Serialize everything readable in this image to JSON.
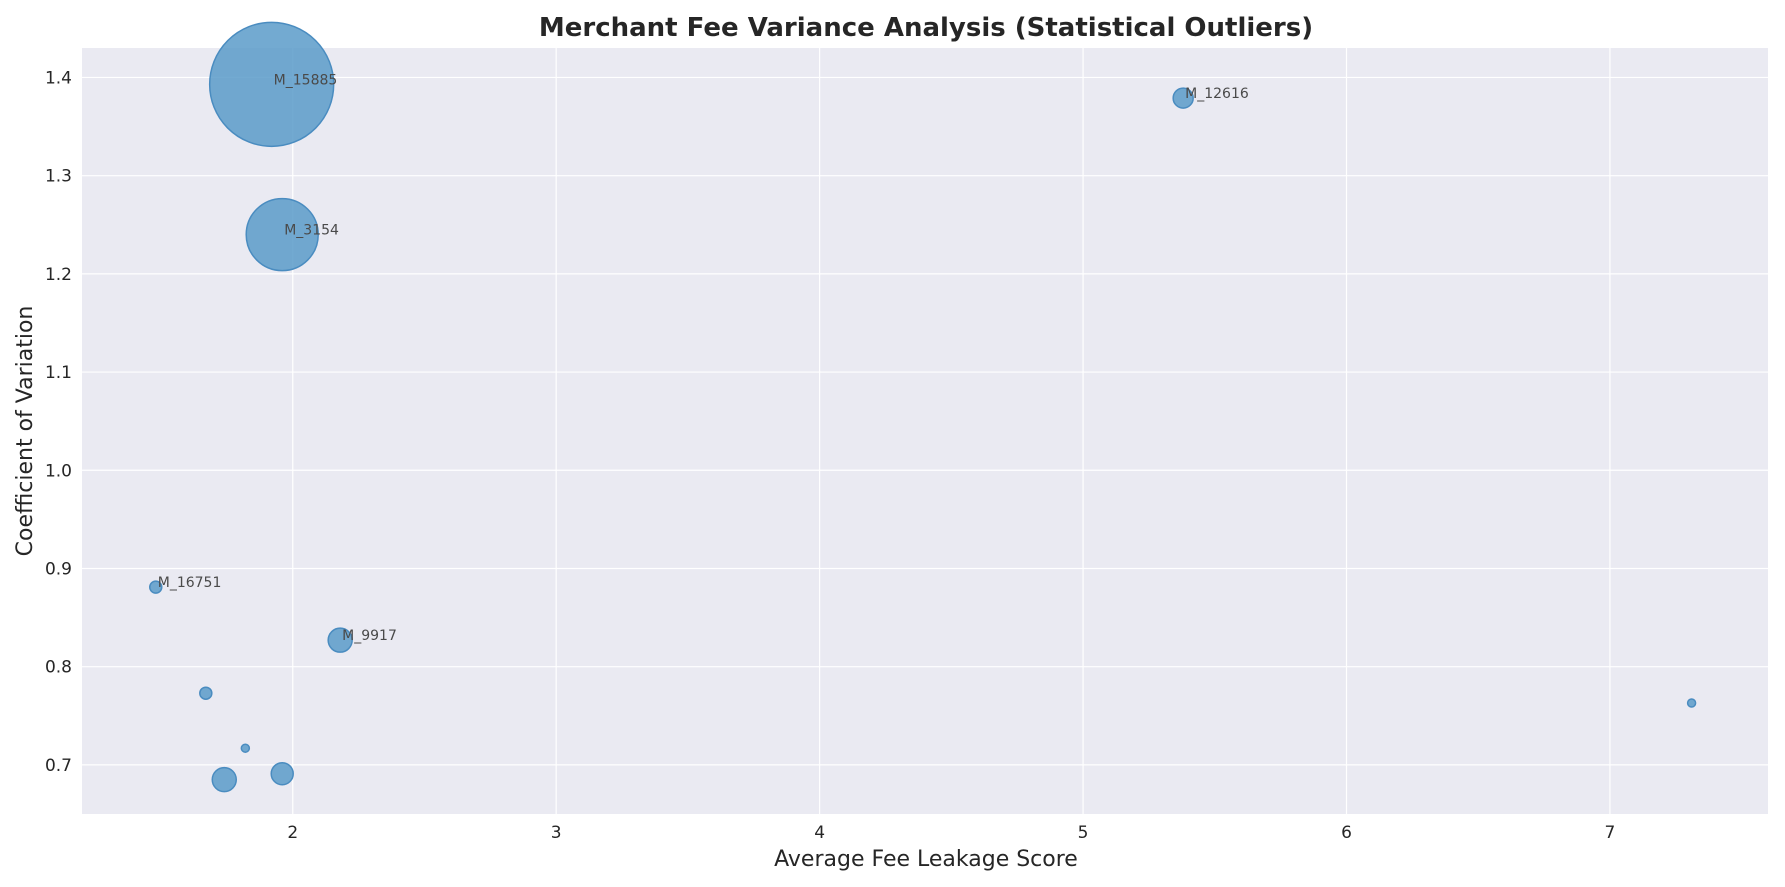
{
  "chart_data": {
    "type": "scatter",
    "title": "Merchant Fee Variance Analysis (Statistical Outliers)",
    "xlabel": "Average Fee Leakage Score",
    "ylabel": "Coefficient of Variation",
    "xlim": [
      1.2,
      7.6
    ],
    "ylim": [
      0.65,
      1.43
    ],
    "xticks": [
      2,
      3,
      4,
      5,
      6,
      7
    ],
    "yticks": [
      0.7,
      0.8,
      0.9,
      1.0,
      1.1,
      1.2,
      1.3,
      1.4
    ],
    "ytick_labels": [
      "0.7",
      "0.8",
      "0.9",
      "1.0",
      "1.1",
      "1.2",
      "1.3",
      "1.4"
    ],
    "grid": true,
    "point_color": "#5b9bc9",
    "background_color": "#eaeaf2",
    "points": [
      {
        "x": 1.92,
        "y": 1.393,
        "size": 62,
        "label": "M_15885"
      },
      {
        "x": 1.96,
        "y": 1.24,
        "size": 36,
        "label": "M_3154"
      },
      {
        "x": 5.38,
        "y": 1.379,
        "size": 10,
        "label": "M_12616"
      },
      {
        "x": 1.48,
        "y": 0.881,
        "size": 6,
        "label": "M_16751"
      },
      {
        "x": 2.18,
        "y": 0.827,
        "size": 12,
        "label": "M_9917"
      },
      {
        "x": 1.67,
        "y": 0.773,
        "size": 6,
        "label": ""
      },
      {
        "x": 1.82,
        "y": 0.717,
        "size": 4,
        "label": ""
      },
      {
        "x": 1.74,
        "y": 0.685,
        "size": 12,
        "label": ""
      },
      {
        "x": 1.96,
        "y": 0.691,
        "size": 11,
        "label": ""
      },
      {
        "x": 7.31,
        "y": 0.763,
        "size": 4,
        "label": ""
      }
    ]
  }
}
